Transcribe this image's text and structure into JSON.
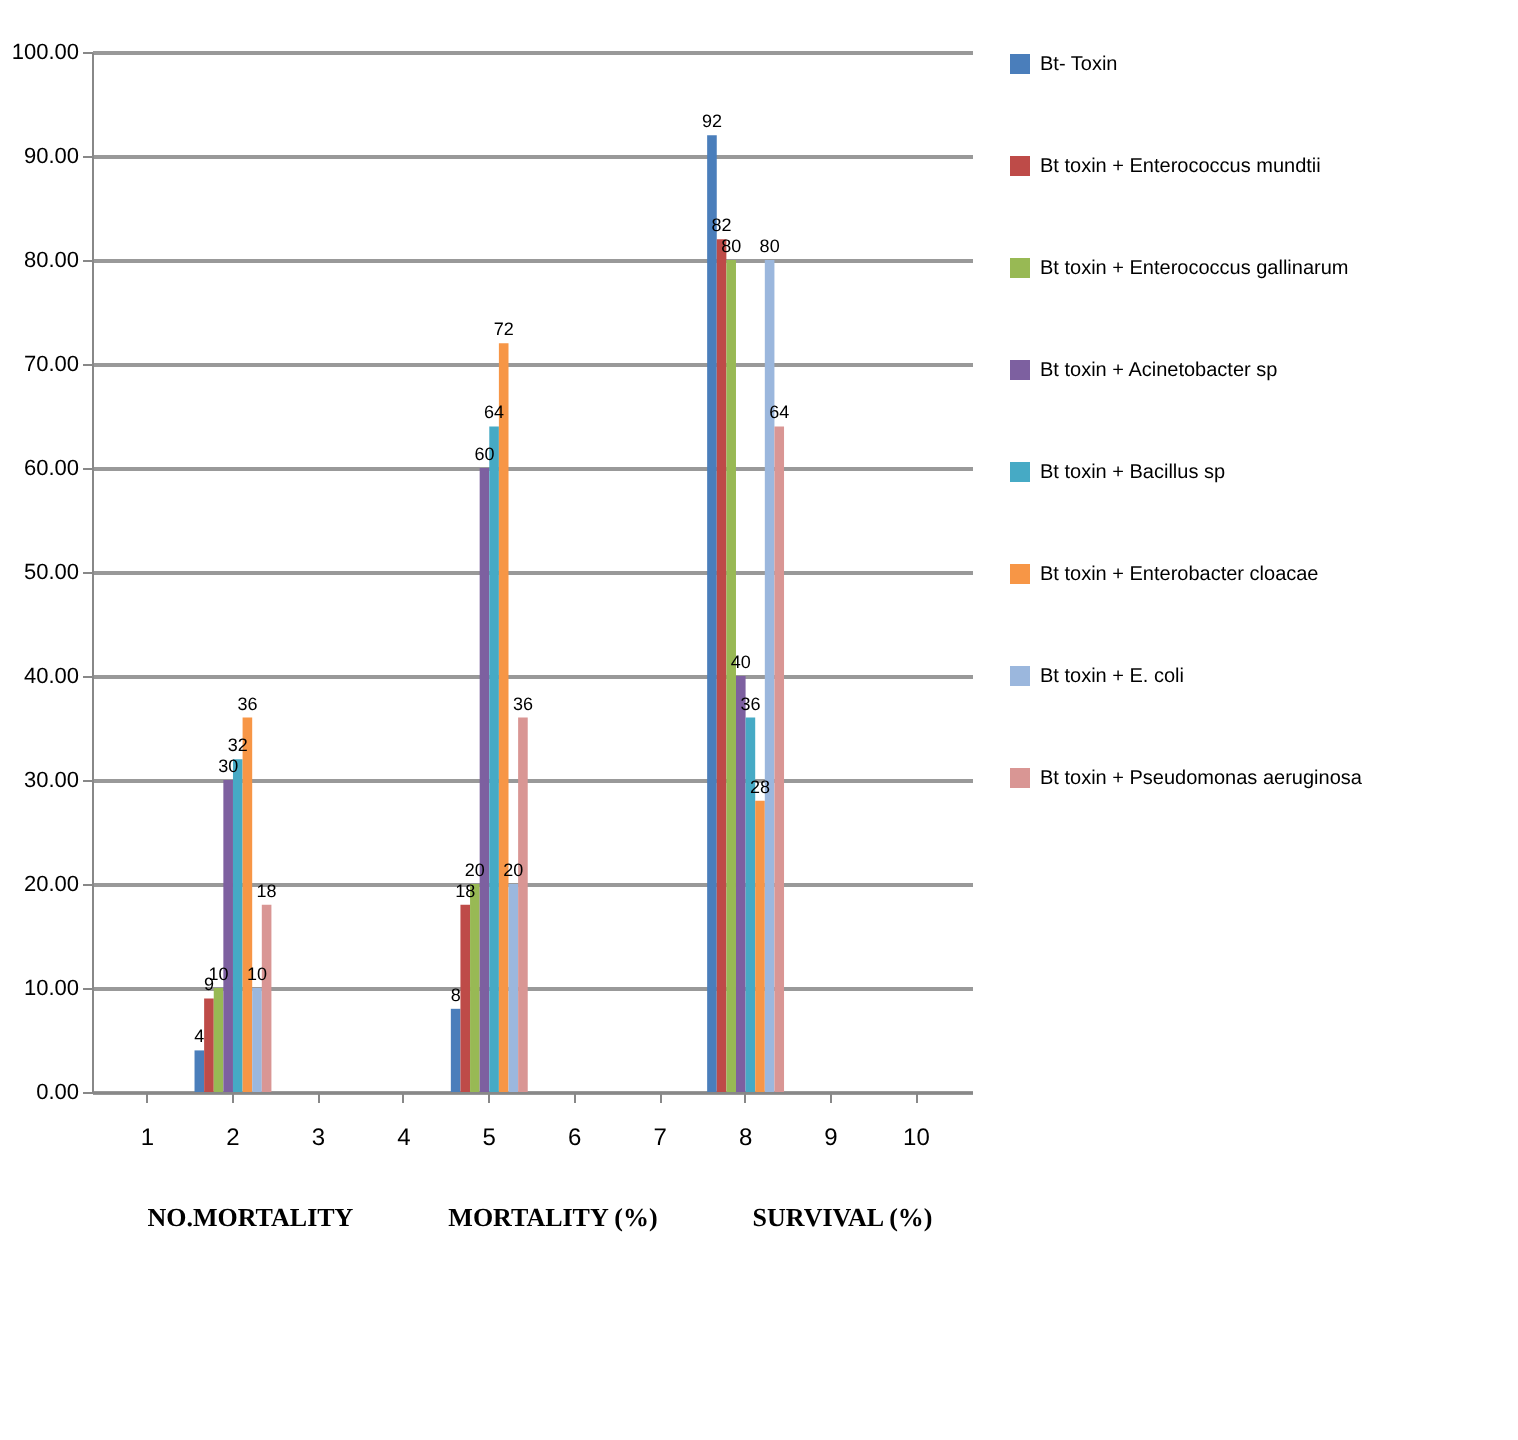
{
  "chart_data": {
    "type": "bar",
    "categories": [
      "1",
      "2",
      "3",
      "4",
      "5",
      "6",
      "7",
      "8",
      "9",
      "10"
    ],
    "series": [
      {
        "name": "Bt- Toxin",
        "color": "#4a7ebb",
        "values": [
          null,
          4,
          null,
          null,
          8,
          null,
          null,
          92,
          null,
          null
        ]
      },
      {
        "name": "Bt toxin + Enterococcus mundtii",
        "color": "#be4b48",
        "values": [
          null,
          9,
          null,
          null,
          18,
          null,
          null,
          82,
          null,
          null
        ]
      },
      {
        "name": "Bt toxin + Enterococcus gallinarum",
        "color": "#98b954",
        "values": [
          null,
          10,
          null,
          null,
          20,
          null,
          null,
          80,
          null,
          null
        ]
      },
      {
        "name": "Bt toxin + Acinetobacter sp",
        "color": "#7d60a0",
        "values": [
          null,
          30,
          null,
          null,
          60,
          null,
          null,
          40,
          null,
          null
        ]
      },
      {
        "name": "Bt toxin + Bacillus sp",
        "color": "#46aac5",
        "values": [
          null,
          32,
          null,
          null,
          64,
          null,
          null,
          36,
          null,
          null
        ]
      },
      {
        "name": "Bt toxin + Enterobacter cloacae",
        "color": "#f79646",
        "values": [
          null,
          36,
          null,
          null,
          72,
          null,
          null,
          28,
          null,
          null
        ]
      },
      {
        "name": "Bt toxin + E. coli",
        "color": "#9bb7dd",
        "values": [
          null,
          10,
          null,
          null,
          20,
          null,
          null,
          80,
          null,
          null
        ]
      },
      {
        "name": "Bt toxin + Pseudomonas  aeruginosa",
        "color": "#d99694",
        "values": [
          null,
          18,
          null,
          null,
          36,
          null,
          null,
          64,
          null,
          null
        ]
      }
    ],
    "ylim": [
      0,
      100
    ],
    "yticks": [
      {
        "value": 0,
        "label": "0.00"
      },
      {
        "value": 10,
        "label": "10.00"
      },
      {
        "value": 20,
        "label": "20.00"
      },
      {
        "value": 30,
        "label": "30.00"
      },
      {
        "value": 40,
        "label": "40.00"
      },
      {
        "value": 50,
        "label": "50.00"
      },
      {
        "value": 60,
        "label": "60.00"
      },
      {
        "value": 70,
        "label": "70.00"
      },
      {
        "value": 80,
        "label": "80.00"
      },
      {
        "value": 90,
        "label": "90.00"
      },
      {
        "value": 100,
        "label": "100.00"
      }
    ],
    "grid": "y",
    "legend": "right",
    "data_labels": true,
    "annotations": [
      "NO.MORTALITY",
      "MORTALITY (%)",
      "SURVIVAL (%)"
    ]
  }
}
